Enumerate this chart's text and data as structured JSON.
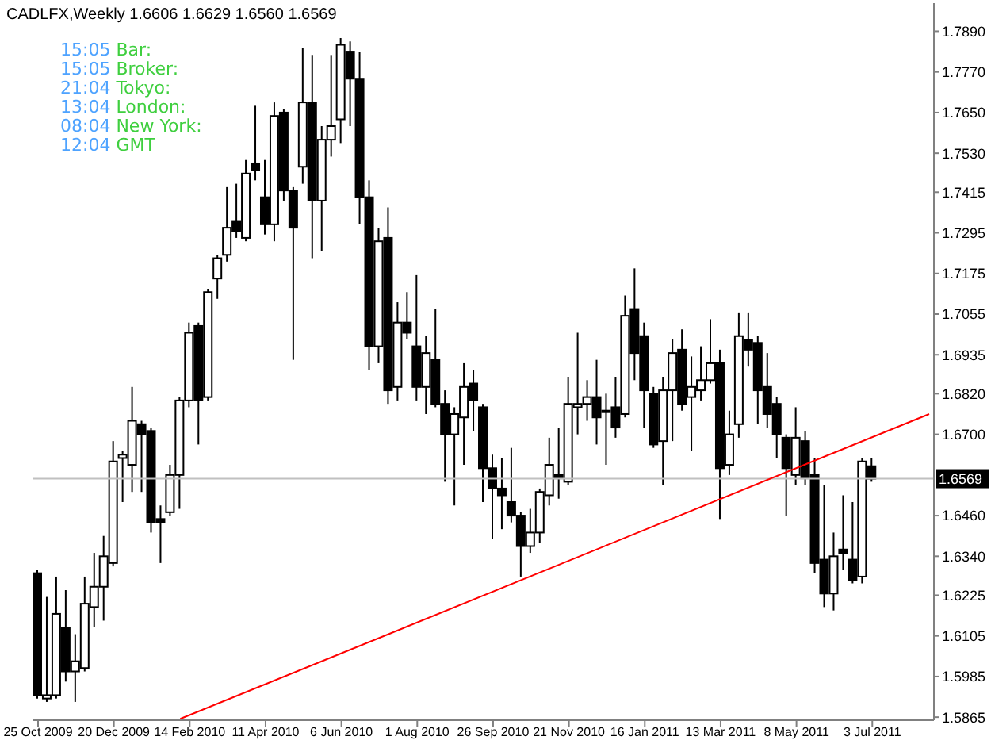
{
  "chart_data": {
    "type": "candlestick",
    "title": "CADLFX,Weekly 1.6606 1.6629 1.6560 1.6569",
    "annotations": [
      "15:05 Bar:",
      "15:05 Broker:",
      "21:04 Tokyo:",
      "13:04 London:",
      "08:04 New York:",
      "12:04 GMT"
    ],
    "categories": [
      "25 Oct 2009",
      null,
      null,
      null,
      null,
      null,
      null,
      null,
      "20 Dec 2009",
      null,
      null,
      null,
      null,
      null,
      null,
      null,
      "14 Feb 2010",
      null,
      null,
      null,
      null,
      null,
      null,
      null,
      "11 Apr 2010",
      null,
      null,
      null,
      null,
      null,
      null,
      null,
      "6 Jun 2010",
      null,
      null,
      null,
      null,
      null,
      null,
      null,
      "1 Aug 2010",
      null,
      null,
      null,
      null,
      null,
      null,
      null,
      "26 Sep 2010",
      null,
      null,
      null,
      null,
      null,
      null,
      null,
      "21 Nov 2010",
      null,
      null,
      null,
      null,
      null,
      null,
      null,
      "16 Jan 2011",
      null,
      null,
      null,
      null,
      null,
      null,
      null,
      "13 Mar 2011",
      null,
      null,
      null,
      null,
      null,
      null,
      null,
      "8 May 2011",
      null,
      null,
      null,
      null,
      null,
      null,
      null,
      "3 Jul 2011",
      null,
      null,
      null,
      null,
      null,
      null
    ],
    "ohlc": [
      [
        1.629,
        1.63,
        1.592,
        1.593
      ],
      [
        1.592,
        1.622,
        1.591,
        1.593
      ],
      [
        1.593,
        1.628,
        1.592,
        1.617
      ],
      [
        1.613,
        1.624,
        1.597,
        1.6
      ],
      [
        1.6,
        1.611,
        1.591,
        1.603
      ],
      [
        1.601,
        1.628,
        1.6,
        1.62
      ],
      [
        1.619,
        1.635,
        1.613,
        1.625
      ],
      [
        1.625,
        1.64,
        1.615,
        1.634
      ],
      [
        1.632,
        1.668,
        1.631,
        1.662
      ],
      [
        1.663,
        1.665,
        1.65,
        1.664
      ],
      [
        1.661,
        1.684,
        1.653,
        1.674
      ],
      [
        1.673,
        1.674,
        1.653,
        1.67
      ],
      [
        1.671,
        1.672,
        1.641,
        1.644
      ],
      [
        1.645,
        1.649,
        1.632,
        1.644
      ],
      [
        1.647,
        1.661,
        1.646,
        1.658
      ],
      [
        1.658,
        1.681,
        1.648,
        1.68
      ],
      [
        1.68,
        1.703,
        1.678,
        1.7
      ],
      [
        1.702,
        1.703,
        1.667,
        1.68
      ],
      [
        1.681,
        1.713,
        1.68,
        1.712
      ],
      [
        1.716,
        1.723,
        1.71,
        1.722
      ],
      [
        1.723,
        1.743,
        1.721,
        1.731
      ],
      [
        1.733,
        1.744,
        1.728,
        1.73
      ],
      [
        1.728,
        1.751,
        1.727,
        1.747
      ],
      [
        1.75,
        1.767,
        1.745,
        1.748
      ],
      [
        1.74,
        1.751,
        1.729,
        1.732
      ],
      [
        1.732,
        1.768,
        1.727,
        1.764
      ],
      [
        1.765,
        1.766,
        1.739,
        1.742
      ],
      [
        1.742,
        1.743,
        1.692,
        1.731
      ],
      [
        1.749,
        1.784,
        1.744,
        1.768
      ],
      [
        1.768,
        1.782,
        1.722,
        1.739
      ],
      [
        1.739,
        1.761,
        1.724,
        1.757
      ],
      [
        1.757,
        1.782,
        1.752,
        1.761
      ],
      [
        1.763,
        1.787,
        1.756,
        1.785
      ],
      [
        1.783,
        1.786,
        1.761,
        1.775
      ],
      [
        1.775,
        1.783,
        1.732,
        1.74
      ],
      [
        1.74,
        1.745,
        1.689,
        1.696
      ],
      [
        1.696,
        1.731,
        1.691,
        1.727
      ],
      [
        1.728,
        1.737,
        1.679,
        1.683
      ],
      [
        1.684,
        1.709,
        1.68,
        1.703
      ],
      [
        1.703,
        1.712,
        1.698,
        1.7
      ],
      [
        1.696,
        1.717,
        1.68,
        1.684
      ],
      [
        1.684,
        1.699,
        1.676,
        1.694
      ],
      [
        1.692,
        1.707,
        1.678,
        1.679
      ],
      [
        1.679,
        1.683,
        1.656,
        1.67
      ],
      [
        1.67,
        1.678,
        1.649,
        1.676
      ],
      [
        1.675,
        1.691,
        1.661,
        1.684
      ],
      [
        1.685,
        1.689,
        1.671,
        1.68
      ],
      [
        1.678,
        1.679,
        1.65,
        1.66
      ],
      [
        1.66,
        1.664,
        1.639,
        1.654
      ],
      [
        1.654,
        1.663,
        1.642,
        1.652
      ],
      [
        1.65,
        1.666,
        1.644,
        1.646
      ],
      [
        1.646,
        1.647,
        1.628,
        1.637
      ],
      [
        1.637,
        1.648,
        1.635,
        1.641
      ],
      [
        1.641,
        1.654,
        1.638,
        1.653
      ],
      [
        1.652,
        1.669,
        1.649,
        1.661
      ],
      [
        1.658,
        1.672,
        1.651,
        1.657
      ],
      [
        1.656,
        1.687,
        1.655,
        1.679
      ],
      [
        1.678,
        1.7,
        1.67,
        1.679
      ],
      [
        1.679,
        1.686,
        1.674,
        1.681
      ],
      [
        1.681,
        1.692,
        1.667,
        1.675
      ],
      [
        1.677,
        1.682,
        1.661,
        1.677
      ],
      [
        1.678,
        1.687,
        1.669,
        1.672
      ],
      [
        1.676,
        1.711,
        1.675,
        1.705
      ],
      [
        1.707,
        1.719,
        1.686,
        1.694
      ],
      [
        1.699,
        1.703,
        1.672,
        1.683
      ],
      [
        1.682,
        1.684,
        1.666,
        1.667
      ],
      [
        1.668,
        1.687,
        1.655,
        1.683
      ],
      [
        1.683,
        1.698,
        1.668,
        1.694
      ],
      [
        1.695,
        1.701,
        1.677,
        1.679
      ],
      [
        1.681,
        1.693,
        1.665,
        1.684
      ],
      [
        1.683,
        1.696,
        1.68,
        1.686
      ],
      [
        1.686,
        1.704,
        1.685,
        1.691
      ],
      [
        1.691,
        1.695,
        1.645,
        1.66
      ],
      [
        1.661,
        1.677,
        1.658,
        1.67
      ],
      [
        1.673,
        1.706,
        1.669,
        1.699
      ],
      [
        1.698,
        1.706,
        1.69,
        1.695
      ],
      [
        1.697,
        1.699,
        1.673,
        1.683
      ],
      [
        1.684,
        1.694,
        1.672,
        1.676
      ],
      [
        1.679,
        1.681,
        1.663,
        1.67
      ],
      [
        1.669,
        1.67,
        1.646,
        1.66
      ],
      [
        1.658,
        1.678,
        1.655,
        1.669
      ],
      [
        1.668,
        1.671,
        1.655,
        1.657
      ],
      [
        1.658,
        1.663,
        1.629,
        1.632
      ],
      [
        1.633,
        1.655,
        1.619,
        1.623
      ],
      [
        1.623,
        1.641,
        1.618,
        1.634
      ],
      [
        1.636,
        1.652,
        1.63,
        1.635
      ],
      [
        1.633,
        1.65,
        1.626,
        1.627
      ],
      [
        1.628,
        1.663,
        1.626,
        1.662
      ],
      [
        1.6606,
        1.6629,
        1.656,
        1.6569
      ],
      null,
      null,
      null,
      null,
      null,
      null
    ],
    "series": [
      {
        "type": "line",
        "color": "#ff0000",
        "values": [
          null,
          null,
          null,
          null,
          null,
          null,
          null,
          null,
          null,
          null,
          null,
          null,
          null,
          null,
          null,
          1.586,
          null,
          null,
          null,
          null,
          null,
          null,
          null,
          null,
          null,
          null,
          null,
          null,
          null,
          null,
          null,
          null,
          null,
          null,
          null,
          null,
          null,
          null,
          null,
          null,
          null,
          null,
          null,
          null,
          null,
          null,
          null,
          null,
          null,
          null,
          null,
          null,
          null,
          null,
          null,
          null,
          null,
          null,
          null,
          null,
          null,
          null,
          null,
          null,
          null,
          null,
          null,
          null,
          null,
          null,
          null,
          null,
          null,
          null,
          null,
          null,
          null,
          null,
          null,
          null,
          null,
          null,
          null,
          null,
          null,
          null,
          null,
          null,
          null,
          null,
          null,
          null,
          null,
          null,
          1.676
        ]
      }
    ],
    "ylim": [
      1.5856,
      1.7973
    ],
    "yticks": [
      {
        "value": 1.789,
        "label": "1.7890"
      },
      {
        "value": 1.777,
        "label": "1.7770"
      },
      {
        "value": 1.765,
        "label": "1.7650"
      },
      {
        "value": 1.753,
        "label": "1.7530"
      },
      {
        "value": 1.7415,
        "label": "1.7415"
      },
      {
        "value": 1.7295,
        "label": "1.7295"
      },
      {
        "value": 1.7175,
        "label": "1.7175"
      },
      {
        "value": 1.7055,
        "label": "1.7055"
      },
      {
        "value": 1.6935,
        "label": "1.6935"
      },
      {
        "value": 1.682,
        "label": "1.6820"
      },
      {
        "value": 1.67,
        "label": "1.6700"
      },
      {
        "value": 1.646,
        "label": "1.6460"
      },
      {
        "value": 1.634,
        "label": "1.6340"
      },
      {
        "value": 1.6225,
        "label": "1.6225"
      },
      {
        "value": 1.6105,
        "label": "1.6105"
      },
      {
        "value": 1.5985,
        "label": "1.5985"
      },
      {
        "value": 1.5865,
        "label": "1.5865"
      }
    ],
    "ref_lines": [
      {
        "axis": "y",
        "value": 1.6569,
        "label": "1.6569",
        "color": "#c0c0c0"
      }
    ]
  }
}
